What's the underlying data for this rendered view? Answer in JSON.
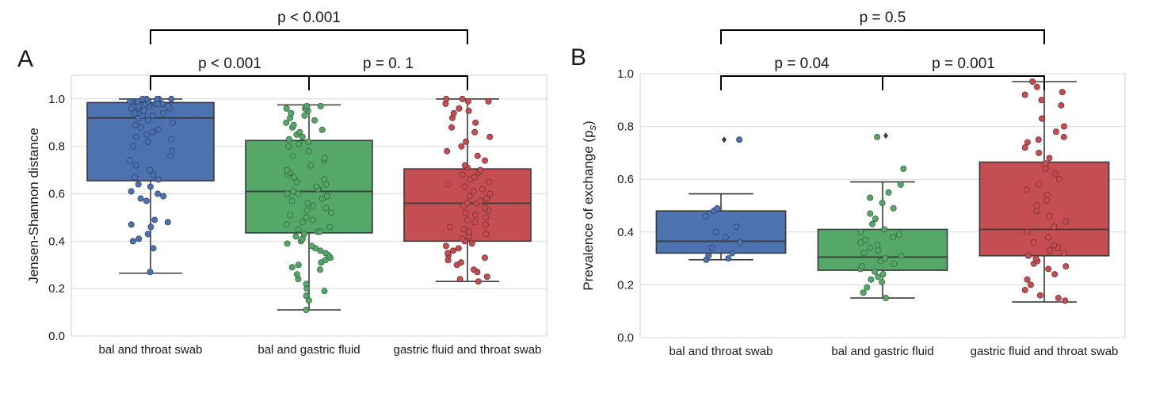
{
  "colors": {
    "blue": "#4c72b0",
    "green": "#55a868",
    "red": "#c44e52",
    "grid": "#d8d8d8",
    "frame": "#cfcfcf",
    "line": "#3a3a3a"
  },
  "chart_data": [
    {
      "type": "box",
      "panel_label": "A",
      "ylabel": "Jensen-Shannon distance",
      "ylim": [
        0,
        1.1
      ],
      "yticks": [
        "0.0",
        "0.2",
        "0.4",
        "0.6",
        "0.8",
        "1.0"
      ],
      "grid": true,
      "categories": [
        "bal and throat swab",
        "bal and gastric fluid",
        "gastric fluid and throat swab"
      ],
      "boxes": [
        {
          "q1": 0.655,
          "median": 0.92,
          "q3": 0.985,
          "whisker_low": 0.265,
          "whisker_high": 1.0,
          "color": "blue"
        },
        {
          "q1": 0.435,
          "median": 0.61,
          "q3": 0.825,
          "whisker_low": 0.11,
          "whisker_high": 0.975,
          "color": "green"
        },
        {
          "q1": 0.4,
          "median": 0.56,
          "q3": 0.705,
          "whisker_low": 0.23,
          "whisker_high": 1.0,
          "color": "red"
        }
      ],
      "points": [
        [
          0.27,
          0.37,
          0.4,
          0.41,
          0.43,
          0.46,
          0.47,
          0.48,
          0.49,
          0.57,
          0.58,
          0.59,
          0.6,
          0.61,
          0.63,
          0.64,
          0.66,
          0.67,
          0.68,
          0.7,
          0.72,
          0.74,
          0.76,
          0.78,
          0.8,
          0.82,
          0.83,
          0.84,
          0.85,
          0.86,
          0.87,
          0.88,
          0.89,
          0.9,
          0.91,
          0.92,
          0.93,
          0.93,
          0.94,
          0.94,
          0.95,
          0.95,
          0.96,
          0.96,
          0.96,
          0.97,
          0.97,
          0.97,
          0.98,
          0.98,
          0.98,
          0.98,
          0.99,
          0.99,
          0.99,
          0.99,
          0.99,
          1.0,
          1.0,
          1.0,
          1.0,
          1.0
        ],
        [
          0.11,
          0.15,
          0.17,
          0.19,
          0.2,
          0.22,
          0.24,
          0.26,
          0.28,
          0.29,
          0.3,
          0.31,
          0.32,
          0.33,
          0.34,
          0.35,
          0.36,
          0.37,
          0.38,
          0.39,
          0.4,
          0.41,
          0.42,
          0.43,
          0.44,
          0.44,
          0.45,
          0.46,
          0.47,
          0.48,
          0.49,
          0.5,
          0.51,
          0.52,
          0.53,
          0.54,
          0.55,
          0.56,
          0.57,
          0.58,
          0.59,
          0.6,
          0.6,
          0.61,
          0.62,
          0.62,
          0.63,
          0.64,
          0.65,
          0.66,
          0.67,
          0.68,
          0.69,
          0.7,
          0.72,
          0.74,
          0.75,
          0.76,
          0.78,
          0.8,
          0.81,
          0.82,
          0.83,
          0.84,
          0.85,
          0.86,
          0.87,
          0.88,
          0.89,
          0.9,
          0.91,
          0.92,
          0.93,
          0.94,
          0.95,
          0.96,
          0.96,
          0.97,
          0.97
        ],
        [
          0.23,
          0.24,
          0.25,
          0.27,
          0.28,
          0.3,
          0.31,
          0.32,
          0.33,
          0.34,
          0.35,
          0.36,
          0.37,
          0.38,
          0.39,
          0.4,
          0.41,
          0.42,
          0.43,
          0.44,
          0.45,
          0.46,
          0.47,
          0.48,
          0.49,
          0.5,
          0.51,
          0.52,
          0.53,
          0.54,
          0.55,
          0.56,
          0.56,
          0.57,
          0.58,
          0.59,
          0.6,
          0.61,
          0.62,
          0.63,
          0.64,
          0.65,
          0.66,
          0.67,
          0.68,
          0.69,
          0.7,
          0.71,
          0.72,
          0.74,
          0.76,
          0.78,
          0.8,
          0.82,
          0.84,
          0.86,
          0.88,
          0.9,
          0.92,
          0.94,
          0.95,
          0.96,
          0.98,
          0.99,
          0.99,
          1.0,
          1.0
        ]
      ],
      "outliers": [
        [],
        [],
        []
      ],
      "comparisons": [
        {
          "from": 0,
          "to": 2,
          "label": "p < 0.001",
          "level": 2
        },
        {
          "from": 0,
          "to": 1,
          "label": "p < 0.001",
          "level": 1
        },
        {
          "from": 1,
          "to": 2,
          "label": "p = 0. 1",
          "level": 1
        }
      ]
    },
    {
      "type": "box",
      "panel_label": "B",
      "ylabel": "Prevalence of exchange (p",
      "ylabel_sub": "s",
      "ylabel_end": ")",
      "ylim": [
        0,
        1.0
      ],
      "yticks": [
        "0.0",
        "0.2",
        "0.4",
        "0.6",
        "0.8",
        "1.0"
      ],
      "grid": true,
      "categories": [
        "bal and throat swab",
        "bal and gastric fluid",
        "gastric fluid and throat swab"
      ],
      "boxes": [
        {
          "q1": 0.32,
          "median": 0.365,
          "q3": 0.48,
          "whisker_low": 0.295,
          "whisker_high": 0.545,
          "color": "blue"
        },
        {
          "q1": 0.255,
          "median": 0.305,
          "q3": 0.41,
          "whisker_low": 0.15,
          "whisker_high": 0.59,
          "color": "green"
        },
        {
          "q1": 0.31,
          "median": 0.41,
          "q3": 0.665,
          "whisker_low": 0.135,
          "whisker_high": 0.97,
          "color": "red"
        }
      ],
      "points": [
        [
          0.295,
          0.3,
          0.31,
          0.32,
          0.34,
          0.36,
          0.38,
          0.4,
          0.42,
          0.46,
          0.48,
          0.49,
          0.75
        ],
        [
          0.15,
          0.17,
          0.19,
          0.21,
          0.22,
          0.23,
          0.24,
          0.25,
          0.26,
          0.27,
          0.28,
          0.29,
          0.3,
          0.31,
          0.32,
          0.33,
          0.34,
          0.35,
          0.36,
          0.37,
          0.38,
          0.39,
          0.4,
          0.41,
          0.43,
          0.45,
          0.47,
          0.49,
          0.51,
          0.53,
          0.55,
          0.58,
          0.64,
          0.76
        ],
        [
          0.14,
          0.15,
          0.16,
          0.18,
          0.2,
          0.22,
          0.24,
          0.26,
          0.27,
          0.28,
          0.29,
          0.3,
          0.31,
          0.32,
          0.33,
          0.34,
          0.35,
          0.36,
          0.38,
          0.4,
          0.42,
          0.44,
          0.46,
          0.48,
          0.5,
          0.52,
          0.54,
          0.56,
          0.58,
          0.6,
          0.62,
          0.64,
          0.66,
          0.68,
          0.7,
          0.72,
          0.74,
          0.75,
          0.76,
          0.78,
          0.8,
          0.83,
          0.88,
          0.9,
          0.92,
          0.93,
          0.95,
          0.97
        ]
      ],
      "outliers": [
        [
          0.75
        ],
        [
          0.765
        ],
        []
      ],
      "comparisons": [
        {
          "from": 0,
          "to": 2,
          "label": "p = 0.5",
          "level": 2
        },
        {
          "from": 0,
          "to": 1,
          "label": "p = 0.04",
          "level": 1
        },
        {
          "from": 1,
          "to": 2,
          "label": "p = 0.001",
          "level": 1
        }
      ]
    }
  ]
}
